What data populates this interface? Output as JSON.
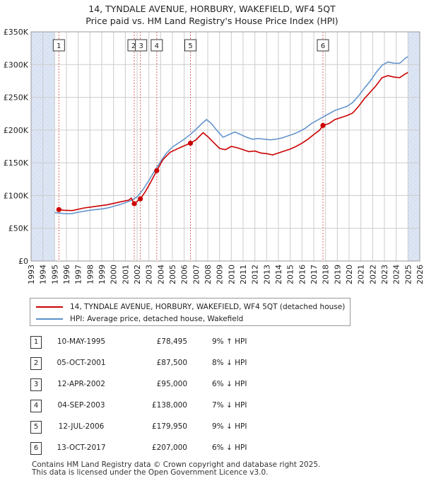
{
  "title": {
    "line1": "14, TYNDALE AVENUE, HORBURY, WAKEFIELD, WF4 5QT",
    "line2": "Price paid vs. HM Land Registry's House Price Index (HPI)"
  },
  "legend": {
    "property": "14, TYNDALE AVENUE, HORBURY, WAKEFIELD, WF4 5QT (detached house)",
    "hpi": "HPI: Average price, detached house, Wakefield"
  },
  "colors": {
    "property": "#cc0000",
    "hpi": "#5b8fcc",
    "shade": "#dde6f5",
    "grid": "#cccccc",
    "vline": "#e06666"
  },
  "chart_data": {
    "type": "line",
    "x_range": [
      1993,
      2026
    ],
    "ylim": [
      0,
      350000
    ],
    "y_ticks": [
      0,
      50000,
      100000,
      150000,
      200000,
      250000,
      300000,
      350000
    ],
    "y_tick_labels": [
      "£0",
      "£50K",
      "£100K",
      "£150K",
      "£200K",
      "£250K",
      "£300K",
      "£350K"
    ],
    "x_ticks": [
      1993,
      1994,
      1995,
      1996,
      1997,
      1998,
      1999,
      2000,
      2001,
      2002,
      2003,
      2004,
      2005,
      2006,
      2007,
      2008,
      2009,
      2010,
      2011,
      2012,
      2013,
      2014,
      2015,
      2016,
      2017,
      2018,
      2019,
      2020,
      2021,
      2022,
      2023,
      2024,
      2025,
      2026
    ],
    "data_start": 1995.0,
    "data_end": 2025.0,
    "series": [
      {
        "name": "14, TYNDALE AVENUE, HORBURY, WAKEFIELD, WF4 5QT (detached house)",
        "points": [
          [
            1995.36,
            78495
          ],
          [
            1995.8,
            77500
          ],
          [
            1996.5,
            77000
          ],
          [
            1997.5,
            81000
          ],
          [
            1998.5,
            83500
          ],
          [
            1999.5,
            86000
          ],
          [
            2000.5,
            90000
          ],
          [
            2001.3,
            93000
          ],
          [
            2001.5,
            96000
          ],
          [
            2001.76,
            87500
          ],
          [
            2002.0,
            91000
          ],
          [
            2002.28,
            95000
          ],
          [
            2002.7,
            106000
          ],
          [
            2003.2,
            122000
          ],
          [
            2003.67,
            138000
          ],
          [
            2004.2,
            155000
          ],
          [
            2004.8,
            166000
          ],
          [
            2005.5,
            172000
          ],
          [
            2006.0,
            176000
          ],
          [
            2006.53,
            179950
          ],
          [
            2007.0,
            185000
          ],
          [
            2007.6,
            196000
          ],
          [
            2008.0,
            190000
          ],
          [
            2008.5,
            181000
          ],
          [
            2009.0,
            172000
          ],
          [
            2009.5,
            170000
          ],
          [
            2010.0,
            175000
          ],
          [
            2010.5,
            173000
          ],
          [
            2011.0,
            170000
          ],
          [
            2011.5,
            167000
          ],
          [
            2012.0,
            168000
          ],
          [
            2012.5,
            165000
          ],
          [
            2013.0,
            164000
          ],
          [
            2013.5,
            162000
          ],
          [
            2014.0,
            165000
          ],
          [
            2014.5,
            168000
          ],
          [
            2015.0,
            171000
          ],
          [
            2015.5,
            175000
          ],
          [
            2016.0,
            180000
          ],
          [
            2016.5,
            186000
          ],
          [
            2017.0,
            193000
          ],
          [
            2017.5,
            200000
          ],
          [
            2017.78,
            207000
          ],
          [
            2018.3,
            210000
          ],
          [
            2018.8,
            216000
          ],
          [
            2019.3,
            219000
          ],
          [
            2019.8,
            222000
          ],
          [
            2020.3,
            226000
          ],
          [
            2020.8,
            236000
          ],
          [
            2021.3,
            248000
          ],
          [
            2021.8,
            258000
          ],
          [
            2022.3,
            268000
          ],
          [
            2022.8,
            280000
          ],
          [
            2023.3,
            283000
          ],
          [
            2023.8,
            281000
          ],
          [
            2024.3,
            280000
          ],
          [
            2024.7,
            285000
          ],
          [
            2025.0,
            288000
          ]
        ]
      },
      {
        "name": "HPI: Average price, detached house, Wakefield",
        "points": [
          [
            1995.0,
            74000
          ],
          [
            1995.5,
            73000
          ],
          [
            1996.0,
            72000
          ],
          [
            1996.5,
            72500
          ],
          [
            1997.0,
            74500
          ],
          [
            1997.5,
            76000
          ],
          [
            1998.0,
            77500
          ],
          [
            1998.5,
            78500
          ],
          [
            1999.0,
            79500
          ],
          [
            1999.5,
            81000
          ],
          [
            2000.0,
            83500
          ],
          [
            2000.5,
            86000
          ],
          [
            2001.0,
            89000
          ],
          [
            2001.5,
            92500
          ],
          [
            2002.0,
            98000
          ],
          [
            2002.5,
            109000
          ],
          [
            2003.0,
            123000
          ],
          [
            2003.5,
            138000
          ],
          [
            2004.0,
            152000
          ],
          [
            2004.5,
            165000
          ],
          [
            2005.0,
            174000
          ],
          [
            2005.5,
            180000
          ],
          [
            2006.0,
            186000
          ],
          [
            2006.5,
            193000
          ],
          [
            2007.0,
            201000
          ],
          [
            2007.5,
            210000
          ],
          [
            2007.9,
            216000
          ],
          [
            2008.3,
            210000
          ],
          [
            2008.8,
            199000
          ],
          [
            2009.3,
            189000
          ],
          [
            2009.8,
            193000
          ],
          [
            2010.3,
            197000
          ],
          [
            2010.8,
            193000
          ],
          [
            2011.3,
            189000
          ],
          [
            2011.8,
            186000
          ],
          [
            2012.3,
            187000
          ],
          [
            2012.8,
            186000
          ],
          [
            2013.3,
            185000
          ],
          [
            2013.8,
            186000
          ],
          [
            2014.3,
            188000
          ],
          [
            2014.8,
            191000
          ],
          [
            2015.3,
            194000
          ],
          [
            2015.8,
            198000
          ],
          [
            2016.3,
            203000
          ],
          [
            2016.8,
            210000
          ],
          [
            2017.3,
            215000
          ],
          [
            2017.8,
            220000
          ],
          [
            2018.3,
            225000
          ],
          [
            2018.8,
            230000
          ],
          [
            2019.3,
            233000
          ],
          [
            2019.8,
            236000
          ],
          [
            2020.3,
            242000
          ],
          [
            2020.8,
            252000
          ],
          [
            2021.3,
            264000
          ],
          [
            2021.8,
            275000
          ],
          [
            2022.3,
            288000
          ],
          [
            2022.8,
            299000
          ],
          [
            2023.3,
            304000
          ],
          [
            2023.8,
            302000
          ],
          [
            2024.3,
            302000
          ],
          [
            2024.8,
            310000
          ],
          [
            2025.0,
            312000
          ]
        ]
      }
    ],
    "transactions": [
      {
        "label": "1",
        "year": 1995.36,
        "price": 78495
      },
      {
        "label": "2",
        "year": 2001.76,
        "price": 87500
      },
      {
        "label": "3",
        "year": 2002.28,
        "price": 95000
      },
      {
        "label": "4",
        "year": 2003.67,
        "price": 138000
      },
      {
        "label": "5",
        "year": 2006.53,
        "price": 179950
      },
      {
        "label": "6",
        "year": 2017.78,
        "price": 207000
      }
    ]
  },
  "table": [
    {
      "num": "1",
      "date": "10-MAY-1995",
      "price": "£78,495",
      "hpi": "9% ↑ HPI"
    },
    {
      "num": "2",
      "date": "05-OCT-2001",
      "price": "£87,500",
      "hpi": "8% ↓ HPI"
    },
    {
      "num": "3",
      "date": "12-APR-2002",
      "price": "£95,000",
      "hpi": "6% ↓ HPI"
    },
    {
      "num": "4",
      "date": "04-SEP-2003",
      "price": "£138,000",
      "hpi": "7% ↓ HPI"
    },
    {
      "num": "5",
      "date": "12-JUL-2006",
      "price": "£179,950",
      "hpi": "9% ↓ HPI"
    },
    {
      "num": "6",
      "date": "13-OCT-2017",
      "price": "£207,000",
      "hpi": "6% ↓ HPI"
    }
  ],
  "footer": {
    "line1": "Contains HM Land Registry data © Crown copyright and database right 2025.",
    "line2": "This data is licensed under the Open Government Licence v3.0."
  }
}
